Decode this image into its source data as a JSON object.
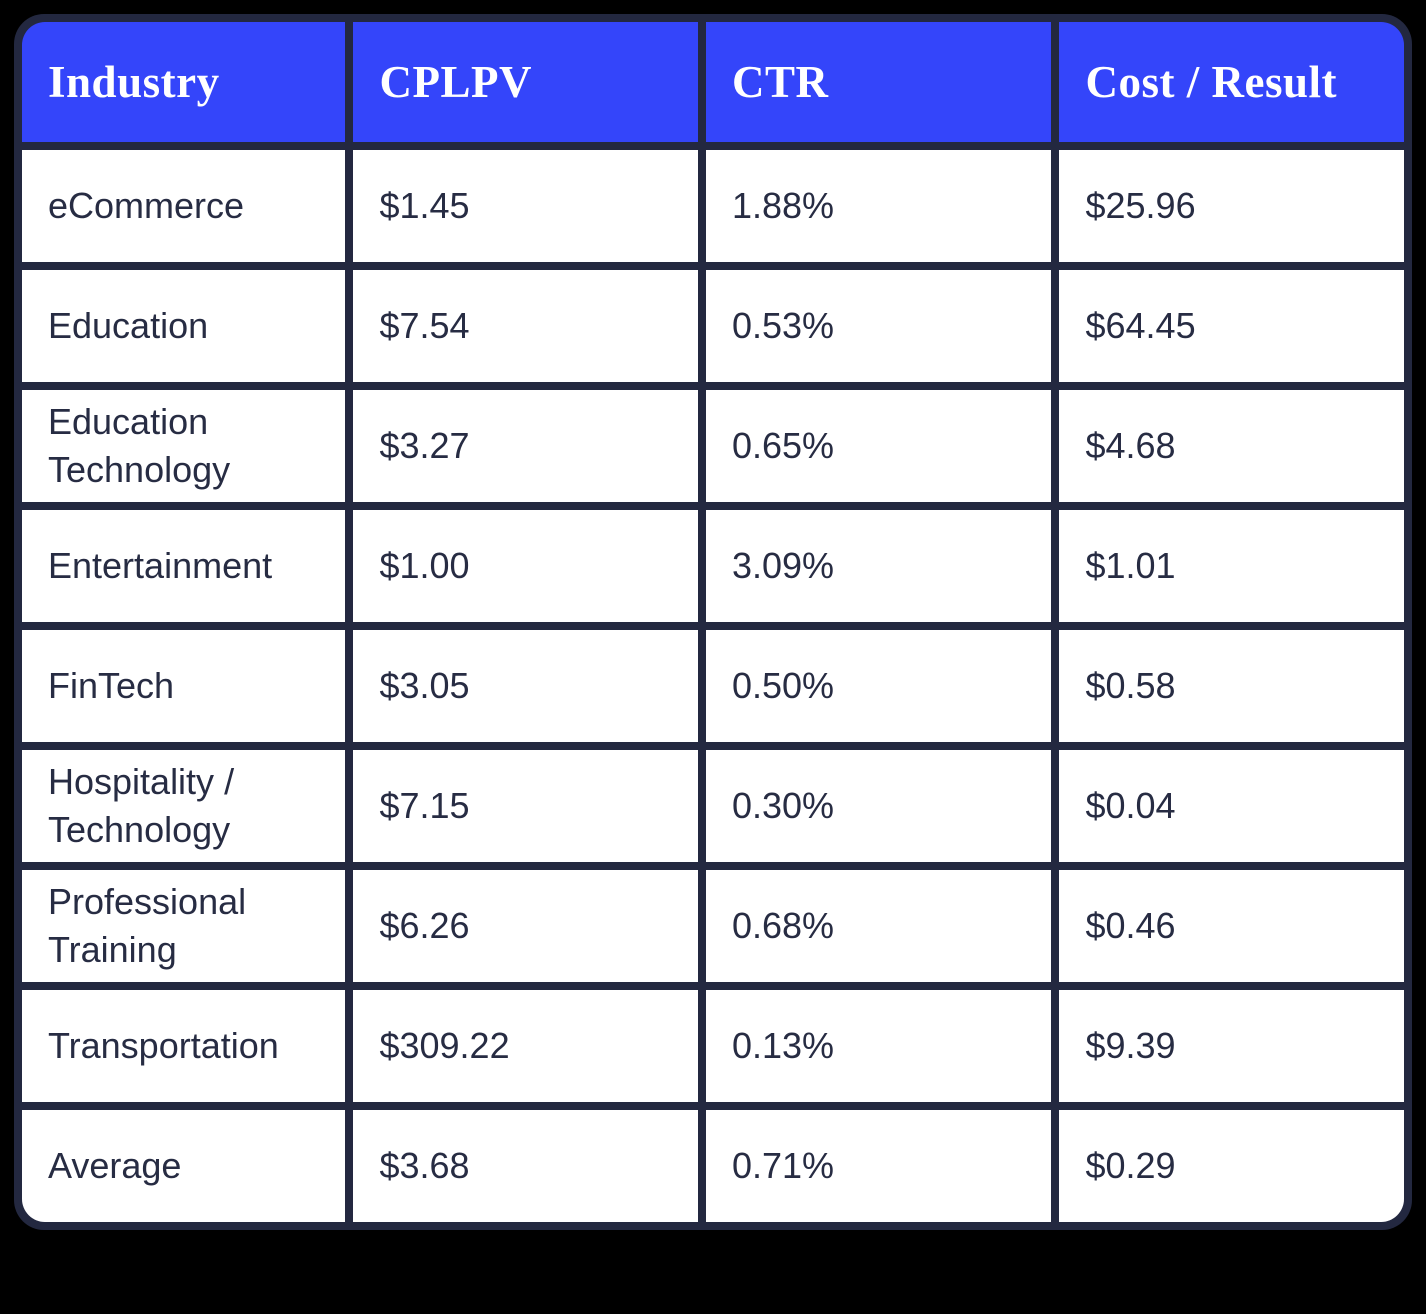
{
  "chart_data": {
    "type": "table",
    "title": "",
    "columns": [
      "Industry",
      "CPLPV",
      "CTR",
      "Cost / Result"
    ],
    "rows": [
      [
        "eCommerce",
        "$1.45",
        "1.88%",
        "$25.96"
      ],
      [
        "Education",
        "$7.54",
        "0.53%",
        "$64.45"
      ],
      [
        "Education Technology",
        "$3.27",
        "0.65%",
        "$4.68"
      ],
      [
        "Entertainment",
        "$1.00",
        "3.09%",
        "$1.01"
      ],
      [
        "FinTech",
        "$3.05",
        "0.50%",
        "$0.58"
      ],
      [
        "Hospitality / Technology",
        "$7.15",
        "0.30%",
        "$0.04"
      ],
      [
        "Professional Training",
        "$6.26",
        "0.68%",
        "$0.46"
      ],
      [
        "Transportation",
        "$309.22",
        "0.13%",
        "$9.39"
      ],
      [
        "Average",
        "$3.68",
        "0.71%",
        "$0.29"
      ]
    ]
  },
  "colors": {
    "header_bg": "#3445fa",
    "header_text": "#ffffff",
    "grid_border": "#232840",
    "cell_bg": "#ffffff",
    "body_text": "#272c43",
    "page_bg": "#000000"
  }
}
